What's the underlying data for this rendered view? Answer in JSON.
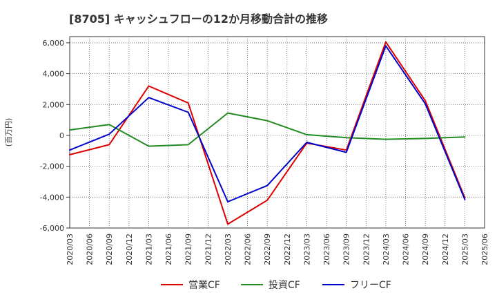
{
  "chart_data": {
    "type": "line",
    "title": "[8705]  キャッシュフローの12か月移動合計の推移",
    "ylabel": "(百万円)",
    "xlabel": "",
    "ylim": [
      -6000,
      6400
    ],
    "yticks": [
      6000,
      4000,
      2000,
      0,
      -2000,
      -4000,
      -6000
    ],
    "ytick_labels": [
      "6,000",
      "4,000",
      "2,000",
      "0",
      "-2,000",
      "-4,000",
      "-6,000"
    ],
    "x_ticks": [
      "2020/03",
      "2020/06",
      "2020/09",
      "2020/12",
      "2021/03",
      "2021/06",
      "2021/09",
      "2021/12",
      "2022/03",
      "2022/06",
      "2022/09",
      "2022/12",
      "2023/03",
      "2023/06",
      "2023/09",
      "2023/12",
      "2024/03",
      "2024/06",
      "2024/09",
      "2024/12",
      "2025/03",
      "2025/06"
    ],
    "grid": true,
    "legend_position": "bottom",
    "series": [
      {
        "name": "営業CF",
        "color": "#dd0000",
        "points": [
          {
            "x": "2020/03",
            "y": -1250
          },
          {
            "x": "2020/09",
            "y": -600
          },
          {
            "x": "2021/03",
            "y": 3200
          },
          {
            "x": "2021/09",
            "y": 2100
          },
          {
            "x": "2022/03",
            "y": -5750
          },
          {
            "x": "2022/09",
            "y": -4200
          },
          {
            "x": "2023/03",
            "y": -500
          },
          {
            "x": "2023/09",
            "y": -950
          },
          {
            "x": "2024/03",
            "y": 6050
          },
          {
            "x": "2024/09",
            "y": 2250
          },
          {
            "x": "2025/03",
            "y": -4050
          }
        ]
      },
      {
        "name": "投資CF",
        "color": "#228b22",
        "points": [
          {
            "x": "2020/03",
            "y": 350
          },
          {
            "x": "2020/09",
            "y": 700
          },
          {
            "x": "2021/03",
            "y": -700
          },
          {
            "x": "2021/09",
            "y": -600
          },
          {
            "x": "2022/03",
            "y": 1450
          },
          {
            "x": "2022/09",
            "y": 950
          },
          {
            "x": "2023/03",
            "y": 50
          },
          {
            "x": "2023/09",
            "y": -150
          },
          {
            "x": "2024/03",
            "y": -250
          },
          {
            "x": "2024/09",
            "y": -200
          },
          {
            "x": "2025/03",
            "y": -100
          }
        ]
      },
      {
        "name": "フリーCF",
        "color": "#0000cc",
        "points": [
          {
            "x": "2020/03",
            "y": -950
          },
          {
            "x": "2020/09",
            "y": 80
          },
          {
            "x": "2021/03",
            "y": 2450
          },
          {
            "x": "2021/09",
            "y": 1500
          },
          {
            "x": "2022/03",
            "y": -4300
          },
          {
            "x": "2022/09",
            "y": -3250
          },
          {
            "x": "2023/03",
            "y": -450
          },
          {
            "x": "2023/09",
            "y": -1100
          },
          {
            "x": "2024/03",
            "y": 5800
          },
          {
            "x": "2024/09",
            "y": 2050
          },
          {
            "x": "2025/03",
            "y": -4150
          }
        ]
      }
    ]
  }
}
